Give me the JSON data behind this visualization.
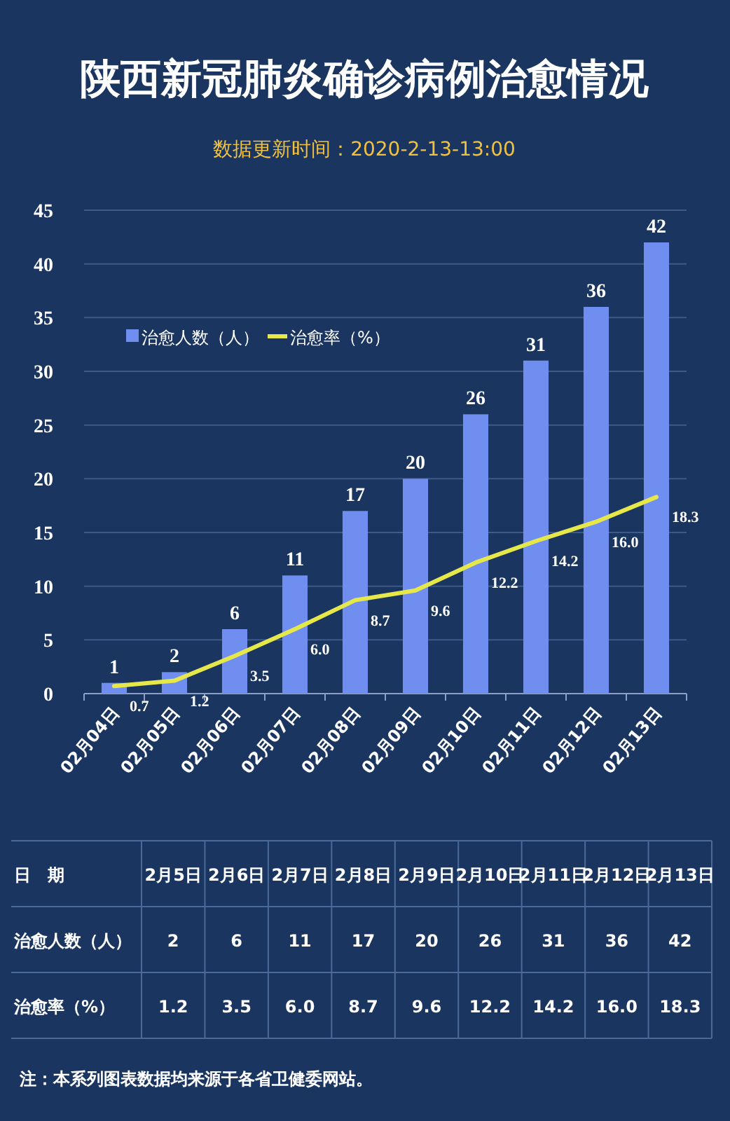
{
  "chart_data": [
    {
      "type": "bar",
      "title": "陕西新冠肺炎确诊病例治愈情况",
      "subtitle": "数据更新时间：2020-2-13-13:00",
      "categories": [
        "02月04日",
        "02月05日",
        "02月06日",
        "02月07日",
        "02月08日",
        "02月09日",
        "02月10日",
        "02月11日",
        "02月12日",
        "02月13日"
      ],
      "series": [
        {
          "name": "治愈人数（人）",
          "color": "#6f8ef0",
          "values": [
            1,
            2,
            6,
            11,
            17,
            20,
            26,
            31,
            36,
            42
          ]
        },
        {
          "name": "治愈率（%）",
          "type": "line",
          "color": "#e6e84a",
          "values": [
            0.7,
            1.2,
            3.5,
            6.0,
            8.7,
            9.6,
            12.2,
            14.2,
            16.0,
            18.3
          ],
          "value_labels": [
            "0.7",
            "1.2",
            "3.5",
            "6.0",
            "8.7",
            "9.6",
            "12.2",
            "14.2",
            "16.0",
            "18.3"
          ]
        }
      ],
      "ylim": [
        0,
        45
      ],
      "yticks": [
        0,
        5,
        10,
        15,
        20,
        25,
        30,
        35,
        40,
        45
      ],
      "grid": "y",
      "legend": "top left",
      "data_labels": true
    },
    {
      "type": "other",
      "xlabel": "日　期",
      "categories": [
        "2月5日",
        "2月6日",
        "2月7日",
        "2月8日",
        "2月9日",
        "2月10日",
        "2月11日",
        "2月12日",
        "2月13日"
      ],
      "series": [
        {
          "name": "治愈人数（人）",
          "value_labels": [
            "2",
            "6",
            "11",
            "17",
            "20",
            "26",
            "31",
            "36",
            "42"
          ],
          "values": [
            2,
            6,
            11,
            17,
            20,
            26,
            31,
            36,
            42
          ]
        },
        {
          "name": "治愈率（%）",
          "value_labels": [
            "1.2",
            "3.5",
            "6.0",
            "8.7",
            "9.6",
            "12.2",
            "14.2",
            "16.0",
            "18.3"
          ],
          "values": [
            1.2,
            3.5,
            6.0,
            8.7,
            9.6,
            12.2,
            14.2,
            16.0,
            18.3
          ]
        }
      ],
      "annotations": [
        "注：本系列图表数据均来源于各省卫健委网站。"
      ]
    }
  ]
}
